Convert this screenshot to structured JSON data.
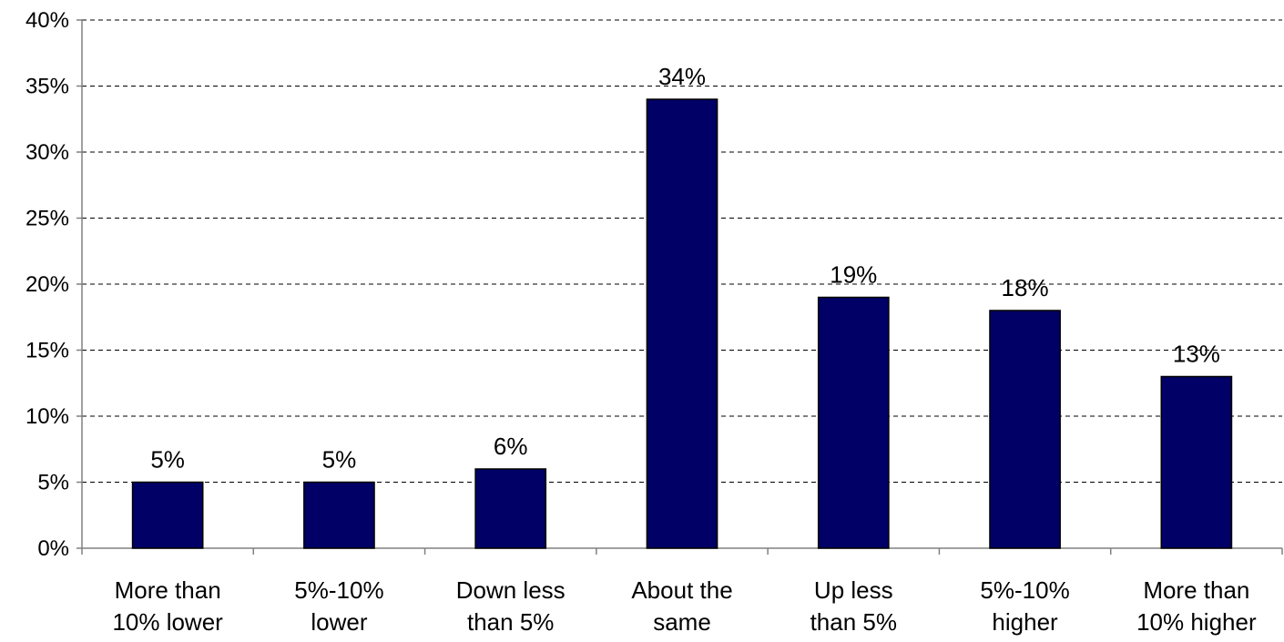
{
  "chart_data": {
    "type": "bar",
    "title": "",
    "xlabel": "",
    "ylabel": "",
    "categories": [
      [
        "More than",
        "10% lower"
      ],
      [
        "5%-10%",
        "lower"
      ],
      [
        "Down less",
        "than 5%"
      ],
      [
        "About the",
        "same"
      ],
      [
        "Up less",
        "than 5%"
      ],
      [
        "5%-10%",
        "higher"
      ],
      [
        "More than",
        "10% higher"
      ]
    ],
    "values": [
      5,
      5,
      6,
      34,
      19,
      18,
      13
    ],
    "data_labels": [
      "5%",
      "5%",
      "6%",
      "34%",
      "19%",
      "18%",
      "13%"
    ],
    "ylim": [
      0,
      40
    ],
    "yticks": [
      0,
      5,
      10,
      15,
      20,
      25,
      30,
      35,
      40
    ],
    "ytick_labels": [
      "0%",
      "5%",
      "10%",
      "15%",
      "20%",
      "25%",
      "30%",
      "35%",
      "40%"
    ],
    "grid": "horizontal-dashed",
    "legend": "none",
    "bar_color": "#000066",
    "bar_edge_color": "#000000",
    "grid_color": "#000000",
    "axis_color": "#808080"
  }
}
